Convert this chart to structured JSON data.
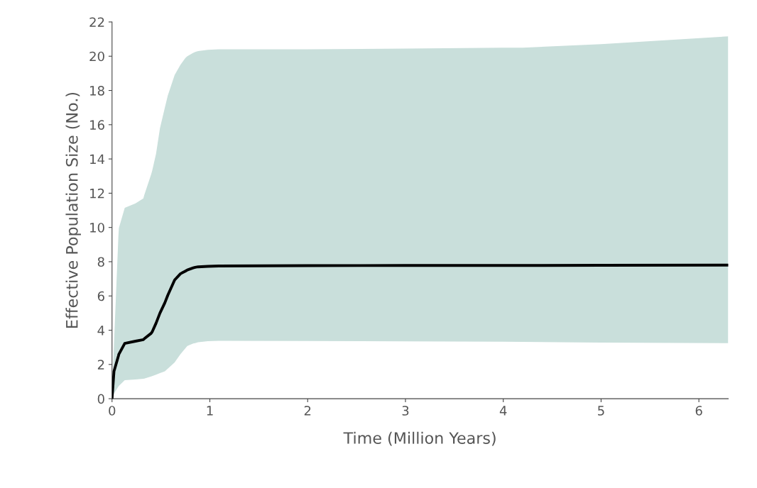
{
  "chart_data": {
    "type": "line",
    "xlabel": "Time (Million Years)",
    "ylabel": "Effective Population Size (No.)",
    "xlim": [
      0,
      6.3
    ],
    "xticks": [
      0,
      1,
      2,
      3,
      4,
      5,
      6
    ],
    "ylim": [
      0,
      22
    ],
    "yticks": [
      0,
      2,
      4,
      6,
      8,
      10,
      12,
      14,
      16,
      18,
      20,
      22
    ],
    "grid": false,
    "series": [
      {
        "color": "#000000",
        "x": [
          0,
          0.02,
          0.065,
          0.07,
          0.13,
          0.24,
          0.32,
          0.33,
          0.4,
          0.41,
          0.45,
          0.49,
          0.54,
          0.57,
          0.64,
          0.7,
          0.75,
          0.77,
          0.83,
          0.85,
          0.88,
          0.98,
          1.09,
          2,
          3,
          4,
          4.2,
          5,
          6.3
        ],
        "values": [
          0,
          1.6,
          2.49,
          2.6,
          3.23,
          3.36,
          3.45,
          3.5,
          3.82,
          3.9,
          4.41,
          5.0,
          5.6,
          6.04,
          6.93,
          7.3,
          7.45,
          7.52,
          7.64,
          7.67,
          7.7,
          7.73,
          7.75,
          7.77,
          7.78,
          7.78,
          7.78,
          7.79,
          7.8
        ],
        "lower": [
          0,
          0.3,
          0.71,
          0.75,
          1.08,
          1.12,
          1.16,
          1.17,
          1.3,
          1.32,
          1.4,
          1.5,
          1.6,
          1.75,
          2.12,
          2.6,
          2.95,
          3.08,
          3.22,
          3.25,
          3.3,
          3.36,
          3.38,
          3.37,
          3.35,
          3.33,
          3.32,
          3.28,
          3.24
        ],
        "upper": [
          0,
          3.2,
          9.5,
          9.97,
          11.15,
          11.4,
          11.7,
          11.9,
          13.1,
          13.3,
          14.3,
          15.8,
          17.0,
          17.7,
          18.9,
          19.5,
          19.9,
          20.0,
          20.2,
          20.25,
          20.3,
          20.37,
          20.4,
          20.4,
          20.45,
          20.5,
          20.5,
          20.7,
          21.16
        ]
      }
    ]
  }
}
